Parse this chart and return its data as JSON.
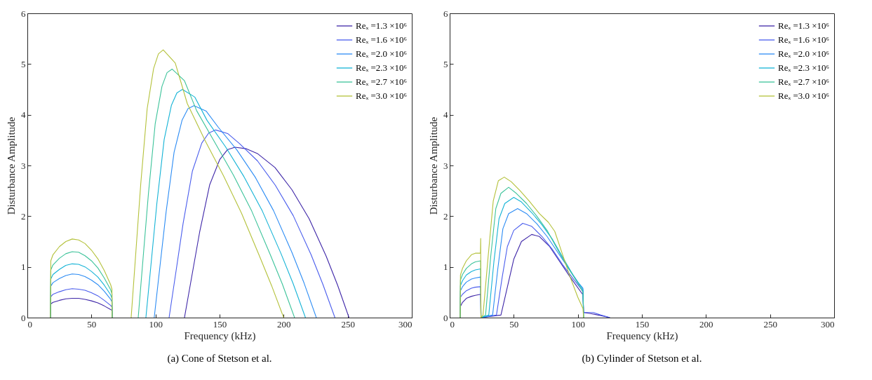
{
  "chart_data": [
    {
      "type": "line",
      "title": "(a)  Cone of Stetson et al.",
      "xlabel": "Frequency (kHz)",
      "ylabel": "Disturbance Amplitude",
      "xlim": [
        0,
        300
      ],
      "ylim": [
        0,
        6
      ],
      "xticks": [
        0,
        50,
        100,
        150,
        200,
        250,
        300
      ],
      "yticks": [
        0,
        1,
        2,
        3,
        4,
        5,
        6
      ],
      "legend": "top right",
      "series": [
        {
          "name": "Reₓ =1.3 ×10⁶",
          "color": "#3e26a8",
          "x": [
            18,
            18.3,
            20,
            25,
            30,
            35,
            40,
            45,
            50,
            55,
            60,
            65,
            66,
            66.2,
            73,
            122.6,
            128.5,
            134.4,
            142.3,
            150.2,
            156.1,
            162,
            170.9,
            179.8,
            193.2,
            206.5,
            219.9,
            233.2,
            242.1,
            251
          ],
          "values": [
            0,
            0.27,
            0.3,
            0.34,
            0.37,
            0.38,
            0.38,
            0.36,
            0.33,
            0.29,
            0.23,
            0.16,
            0.14,
            0,
            null,
            0,
            0.84,
            1.68,
            2.62,
            3.12,
            3.31,
            3.36,
            3.33,
            3.23,
            2.96,
            2.52,
            1.95,
            1.21,
            0.64,
            0
          ]
        },
        {
          "name": "Reₓ =1.6 ×10⁶",
          "color": "#4a5ded",
          "x": [
            18,
            18.3,
            20,
            25,
            30,
            35,
            40,
            45,
            50,
            55,
            60,
            65,
            66,
            66.2,
            73,
            110.6,
            116.1,
            121.5,
            128.8,
            136.1,
            141.5,
            147,
            156.3,
            165.6,
            179.6,
            193.5,
            207.5,
            221.4,
            230.7,
            240
          ],
          "values": [
            0,
            0.41,
            0.46,
            0.51,
            0.55,
            0.57,
            0.56,
            0.54,
            0.49,
            0.43,
            0.34,
            0.24,
            0.21,
            0,
            null,
            0,
            0.93,
            1.85,
            2.89,
            3.44,
            3.64,
            3.7,
            3.63,
            3.43,
            3.09,
            2.61,
            2.01,
            1.24,
            0.65,
            0
          ]
        },
        {
          "name": "Reₓ =2.0 ×10⁶",
          "color": "#2c8cf4",
          "x": [
            18,
            18.3,
            20,
            25,
            30,
            35,
            40,
            45,
            50,
            55,
            60,
            65,
            66,
            66.2,
            73,
            99,
            103.65,
            108.3,
            114.5,
            120.7,
            125.35,
            130,
            139.6,
            149.1,
            163.4,
            177.8,
            192.1,
            206.4,
            215.95,
            225.5
          ],
          "values": [
            0,
            0.62,
            0.69,
            0.77,
            0.83,
            0.86,
            0.85,
            0.81,
            0.74,
            0.65,
            0.52,
            0.36,
            0.31,
            0,
            null,
            0,
            1.05,
            2.09,
            3.26,
            3.89,
            4.12,
            4.18,
            4.07,
            3.75,
            3.31,
            2.77,
            2.11,
            1.29,
            0.68,
            0
          ]
        },
        {
          "name": "Reₓ =2.3 ×10⁶",
          "color": "#14b3d6",
          "x": [
            18,
            18.3,
            20,
            25,
            30,
            35,
            40,
            45,
            50,
            55,
            60,
            65,
            66,
            66.2,
            73,
            92.5,
            96.8,
            101.05,
            106.75,
            112.45,
            116.7,
            121,
            130.6,
            140.2,
            154.6,
            169,
            183.4,
            197.8,
            207.4,
            217
          ],
          "values": [
            0,
            0.76,
            0.85,
            0.95,
            1.03,
            1.06,
            1.05,
            1.0,
            0.91,
            0.8,
            0.64,
            0.45,
            0.38,
            0,
            null,
            0,
            1.13,
            2.25,
            3.51,
            4.19,
            4.43,
            4.5,
            4.35,
            3.89,
            3.37,
            2.78,
            2.1,
            1.27,
            0.67,
            0
          ]
        },
        {
          "name": "Reₓ =2.7 ×10⁶",
          "color": "#3cc39a",
          "x": [
            18,
            18.3,
            20,
            25,
            30,
            35,
            40,
            45,
            50,
            55,
            60,
            65,
            66,
            66.2,
            73,
            86.5,
            90.5,
            94.5,
            99.75,
            105.05,
            109,
            113,
            122.6,
            132.1,
            146.4,
            160.8,
            175.1,
            189.4,
            199,
            208.5
          ],
          "values": [
            0,
            0.94,
            1.04,
            1.17,
            1.26,
            1.3,
            1.29,
            1.22,
            1.12,
            0.98,
            0.78,
            0.55,
            0.47,
            0,
            null,
            0,
            1.23,
            2.45,
            3.82,
            4.56,
            4.83,
            4.9,
            4.67,
            4.08,
            3.45,
            2.81,
            2.1,
            1.25,
            0.66,
            0
          ]
        },
        {
          "name": "Reₓ =3.0 ×10⁶",
          "color": "#b4c13a",
          "x": [
            18,
            18.3,
            20,
            25,
            30,
            35,
            40,
            45,
            50,
            55,
            60,
            65,
            66,
            66.2,
            73,
            81,
            84.75,
            88.5,
            93.5,
            98.5,
            102.25,
            106,
            115.4,
            124.8,
            138.9,
            153,
            167.1,
            181.2,
            190.6,
            200
          ],
          "values": [
            0,
            1.12,
            1.24,
            1.4,
            1.5,
            1.55,
            1.53,
            1.46,
            1.33,
            1.16,
            0.93,
            0.65,
            0.56,
            0,
            null,
            0,
            1.32,
            2.64,
            4.12,
            4.91,
            5.2,
            5.28,
            5.02,
            4.22,
            3.48,
            2.8,
            2.06,
            1.21,
            0.63,
            0
          ]
        }
      ]
    },
    {
      "type": "line",
      "title": "(b)  Cylinder of Stetson et al.",
      "xlabel": "Frequency (kHz)",
      "ylabel": "Disturbance Amplitude",
      "xlim": [
        0,
        300
      ],
      "ylim": [
        0,
        6
      ],
      "xticks": [
        0,
        50,
        100,
        150,
        200,
        250,
        300
      ],
      "yticks": [
        0,
        1,
        2,
        3,
        4,
        5,
        6
      ],
      "legend": "top right",
      "series": [
        {
          "name": "Reₓ =1.3 ×10⁶",
          "color": "#3e26a8",
          "x": [
            8.2,
            8.4,
            10,
            13,
            17,
            20,
            24.2,
            24.4,
            40,
            45,
            50,
            56,
            64,
            70,
            78,
            86,
            94,
            104,
            104.5,
            110,
            118,
            125
          ],
          "values": [
            0,
            0.22,
            0.3,
            0.38,
            0.42,
            0.44,
            0.46,
            0,
            0.05,
            0.6,
            1.15,
            1.5,
            1.64,
            1.6,
            1.4,
            1.1,
            0.8,
            0.45,
            0.1,
            0.08,
            0.04,
            0
          ]
        },
        {
          "name": "Reₓ =1.6 ×10⁶",
          "color": "#4a5ded",
          "x": [
            8.2,
            8.4,
            10,
            13,
            17,
            20,
            24.2,
            24.4,
            36.5,
            41,
            45,
            50,
            57,
            64,
            72,
            80,
            88,
            96,
            104,
            104.5,
            112,
            118,
            125
          ],
          "values": [
            0,
            0.4,
            0.46,
            0.53,
            0.58,
            0.6,
            0.61,
            0,
            0.05,
            0.8,
            1.4,
            1.72,
            1.86,
            1.8,
            1.6,
            1.35,
            1.05,
            0.78,
            0.52,
            0.1,
            0.1,
            0.05,
            0
          ]
        },
        {
          "name": "Reₓ =2.0 ×10⁶",
          "color": "#2c8cf4",
          "x": [
            8.2,
            8.4,
            10,
            13,
            17,
            20,
            24.2,
            24.4,
            33.5,
            37.5,
            41.5,
            46,
            53,
            60,
            68,
            76,
            84,
            92,
            100,
            104,
            104.5
          ],
          "values": [
            0,
            0.53,
            0.61,
            0.7,
            0.76,
            0.78,
            0.8,
            0,
            0.05,
            0.95,
            1.75,
            2.05,
            2.15,
            2.05,
            1.85,
            1.6,
            1.3,
            1.0,
            0.7,
            0.58,
            0
          ]
        },
        {
          "name": "Reₓ =2.3 ×10⁶",
          "color": "#14b3d6",
          "x": [
            8.2,
            8.4,
            10,
            13,
            17,
            20,
            24.2,
            24.4,
            30.5,
            34.5,
            38.5,
            43,
            50,
            56,
            64,
            72,
            80,
            88,
            96,
            104,
            104.5
          ],
          "values": [
            0,
            0.63,
            0.73,
            0.84,
            0.91,
            0.94,
            0.96,
            0,
            0.05,
            1.1,
            1.95,
            2.25,
            2.37,
            2.28,
            2.07,
            1.83,
            1.55,
            1.2,
            0.85,
            0.55,
            0
          ]
        },
        {
          "name": "Reₓ =2.7 ×10⁶",
          "color": "#3cc39a",
          "x": [
            8.2,
            8.4,
            10,
            13,
            17,
            20,
            24.2,
            24.4,
            28,
            32,
            36,
            40,
            46,
            52,
            60,
            68,
            76,
            84,
            92,
            100,
            104,
            104.5
          ],
          "values": [
            0,
            0.74,
            0.85,
            0.97,
            1.06,
            1.1,
            1.12,
            0,
            0.05,
            1.2,
            2.15,
            2.45,
            2.57,
            2.45,
            2.25,
            2.0,
            1.72,
            1.35,
            1.0,
            0.68,
            0.5,
            0
          ]
        },
        {
          "name": "Reₓ =3.0 ×10⁶",
          "color": "#b4c13a",
          "x": [
            8.2,
            8.4,
            10,
            13,
            17,
            20,
            24,
            24.2,
            24.4,
            26,
            30,
            34,
            38,
            42.6,
            48,
            55,
            62,
            70,
            77,
            82,
            88,
            94,
            100,
            104,
            104.5
          ],
          "values": [
            0,
            0.84,
            0.97,
            1.12,
            1.24,
            1.27,
            1.27,
            1.56,
            0,
            0.05,
            1.2,
            2.3,
            2.7,
            2.77,
            2.68,
            2.5,
            2.3,
            2.05,
            1.88,
            1.7,
            1.25,
            0.8,
            0.4,
            0.18,
            0
          ]
        }
      ]
    }
  ]
}
